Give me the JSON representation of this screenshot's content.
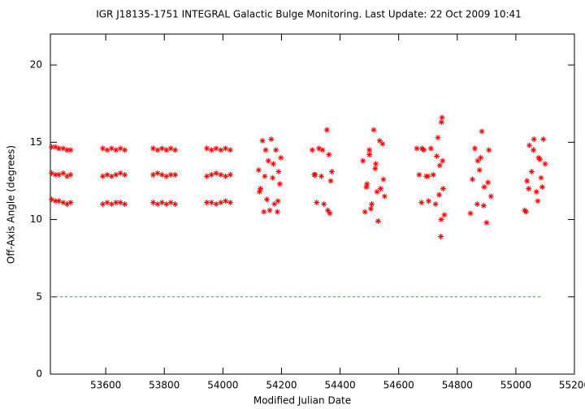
{
  "chart_data": {
    "type": "scatter",
    "title": "IGR J18135-1751   INTEGRAL Galactic Bulge Monitoring.  Last Update: 22 Oct 2009 10:41",
    "x_label": "Modified Julian Date",
    "y_label": "Off-Axis Angle (degrees)",
    "xlim": [
      53411,
      55200
    ],
    "ylim": [
      0,
      22
    ],
    "xticks": [
      53600,
      53800,
      54000,
      54200,
      54400,
      54600,
      54800,
      55000,
      55200
    ],
    "yticks": [
      0,
      5,
      10,
      15,
      20
    ],
    "reference_line": {
      "y": 5,
      "x": [
        53411,
        55090
      ],
      "color": "#00cc00"
    },
    "series": [
      {
        "color": "#ff0000",
        "x": [
          53415,
          53428,
          53440,
          53455,
          53468,
          53480,
          53415,
          53428,
          53440,
          53455,
          53468,
          53480,
          53415,
          53428,
          53440,
          53455,
          53468,
          53480,
          53590,
          53605,
          53620,
          53635,
          53650,
          53665,
          53590,
          53605,
          53620,
          53635,
          53650,
          53665,
          53590,
          53605,
          53620,
          53635,
          53650,
          53665,
          53762,
          53777,
          53792,
          53807,
          53822,
          53837,
          53762,
          53777,
          53792,
          53807,
          53822,
          53837,
          53762,
          53777,
          53792,
          53807,
          53822,
          53837,
          53945,
          53961,
          53977,
          53993,
          54009,
          54025,
          53945,
          53961,
          53977,
          53993,
          54009,
          54025,
          53945,
          53961,
          53977,
          53993,
          54009,
          54025,
          54122,
          54128,
          54135,
          54140,
          54146,
          54150,
          54155,
          54160,
          54165,
          54170,
          54176,
          54181,
          54186,
          54190,
          54194,
          54198,
          54125,
          54143,
          54172,
          54188,
          54305,
          54312,
          54320,
          54328,
          54336,
          54345,
          54355,
          54362,
          54368,
          54358,
          54365,
          54372,
          54340,
          54315,
          54478,
          54485,
          54492,
          54500,
          54508,
          54515,
          54522,
          54530,
          54538,
          54545,
          54552,
          54490,
          54505,
          54520,
          54535,
          54548,
          54500,
          54526,
          54662,
          54670,
          54678,
          54686,
          54694,
          54702,
          54710,
          54718,
          54726,
          54734,
          54740,
          54744,
          54748,
          54752,
          54756,
          54730,
          54738,
          54746,
          54750,
          54680,
          54700,
          54745,
          54845,
          54852,
          54860,
          54868,
          54876,
          54884,
          54892,
          54900,
          54908,
          54915,
          54870,
          54890,
          54905,
          54880,
          55030,
          55038,
          55046,
          55054,
          55062,
          55070,
          55078,
          55086,
          55094,
          55100,
          55044,
          55060,
          55075,
          55090,
          55035,
          55082
        ],
        "values": [
          14.7,
          14.7,
          14.6,
          14.6,
          14.5,
          14.5,
          13.0,
          12.9,
          12.9,
          13.0,
          12.8,
          12.9,
          11.3,
          11.2,
          11.2,
          11.1,
          11.0,
          11.1,
          14.6,
          14.5,
          14.6,
          14.5,
          14.6,
          14.5,
          12.8,
          12.9,
          12.8,
          12.9,
          13.0,
          12.9,
          11.0,
          11.1,
          11.0,
          11.1,
          11.1,
          11.0,
          14.6,
          14.5,
          14.6,
          14.5,
          14.6,
          14.5,
          12.9,
          13.0,
          12.9,
          12.8,
          12.9,
          12.9,
          11.1,
          11.0,
          11.1,
          11.0,
          11.1,
          11.0,
          14.6,
          14.5,
          14.6,
          14.5,
          14.6,
          14.5,
          12.8,
          12.9,
          13.0,
          12.9,
          12.8,
          12.9,
          11.1,
          11.1,
          11.0,
          11.1,
          11.2,
          11.1,
          13.2,
          12.0,
          15.1,
          10.5,
          14.5,
          11.3,
          13.8,
          10.6,
          15.2,
          12.7,
          11.0,
          14.5,
          10.5,
          13.1,
          12.3,
          14.0,
          11.8,
          12.8,
          13.6,
          11.2,
          14.5,
          12.9,
          11.1,
          14.6,
          12.8,
          11.0,
          15.8,
          14.2,
          12.5,
          10.6,
          10.4,
          13.1,
          14.5,
          12.9,
          13.8,
          10.5,
          12.3,
          14.2,
          11.0,
          15.8,
          13.6,
          9.9,
          12.0,
          14.9,
          11.5,
          12.1,
          10.7,
          13.3,
          15.1,
          12.6,
          14.5,
          11.8,
          14.6,
          12.9,
          11.1,
          14.5,
          12.8,
          11.2,
          14.6,
          12.9,
          11.0,
          15.3,
          13.5,
          8.9,
          16.6,
          12.0,
          10.3,
          14.1,
          11.6,
          16.3,
          13.8,
          14.6,
          12.8,
          10.0,
          10.4,
          12.6,
          14.6,
          11.0,
          13.2,
          15.7,
          12.1,
          9.8,
          14.5,
          11.5,
          13.8,
          10.9,
          12.4,
          14.0,
          10.6,
          12.5,
          14.8,
          13.1,
          15.2,
          11.8,
          14.0,
          12.7,
          15.2,
          13.6,
          12.0,
          14.5,
          11.2,
          12.1,
          10.5,
          13.9
        ]
      }
    ]
  }
}
